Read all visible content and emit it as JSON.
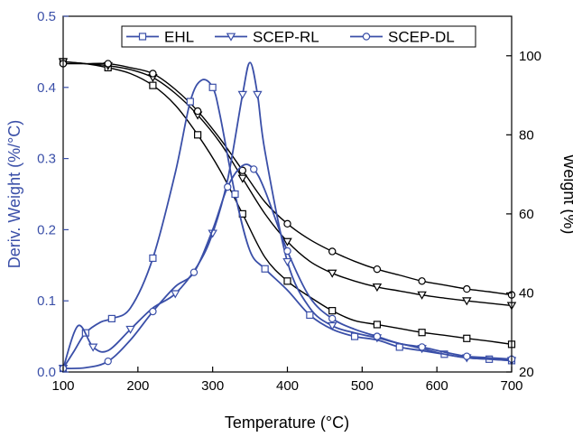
{
  "chart_data": {
    "type": "line",
    "xlabel": "Temperature (°C)",
    "ylabel_left": "Deriv. Weight (%/°C)",
    "ylabel_right": "Weight (%)",
    "xlim": [
      100,
      700
    ],
    "ylim_left": [
      0,
      0.5
    ],
    "ylim_right": [
      20,
      110
    ],
    "x_ticks": [
      100,
      200,
      300,
      400,
      500,
      600,
      700
    ],
    "x_tick_labels": [
      "100",
      "200",
      "300",
      "400",
      "500",
      "600",
      "700"
    ],
    "left_ticks": [
      0,
      0.1,
      0.2,
      0.3,
      0.4,
      0.5
    ],
    "left_tick_labels": [
      "0.0",
      "0.1",
      "0.2",
      "0.3",
      "0.4",
      "0.5"
    ],
    "right_ticks": [
      20,
      40,
      60,
      80,
      100
    ],
    "right_tick_labels": [
      "20",
      "40",
      "60",
      "80",
      "100"
    ],
    "grid": false,
    "legend_position": "top-center",
    "legend": [
      {
        "name": "EHL",
        "marker": "square"
      },
      {
        "name": "SCEP-RL",
        "marker": "triangle-down"
      },
      {
        "name": "SCEP-DL",
        "marker": "circle"
      }
    ],
    "colors": {
      "derivative": "#3a4fa8",
      "weight": "#000000",
      "left_axis": "#3a4fa8",
      "right_axis": "#000000"
    },
    "series": [
      {
        "name": "EHL",
        "axis": "right",
        "marker": "square",
        "color": "#000000",
        "x": [
          100,
          130,
          160,
          190,
          220,
          250,
          280,
          310,
          340,
          370,
          400,
          430,
          460,
          490,
          520,
          550,
          580,
          610,
          640,
          670,
          700
        ],
        "y": [
          98.5,
          98,
          97,
          95.5,
          92.5,
          87.5,
          80,
          71,
          60,
          49,
          43,
          39,
          35.5,
          33,
          32,
          31,
          30,
          29.3,
          28.5,
          27.8,
          27
        ]
      },
      {
        "name": "SCEP-RL",
        "axis": "right",
        "marker": "triangle-down",
        "color": "#000000",
        "x": [
          100,
          130,
          160,
          190,
          220,
          250,
          280,
          310,
          340,
          370,
          400,
          430,
          460,
          490,
          520,
          550,
          580,
          610,
          640,
          670,
          700
        ],
        "y": [
          98.5,
          98,
          97.5,
          96.5,
          94.5,
          90.5,
          85,
          78,
          69,
          60,
          53,
          48,
          45,
          43,
          41.5,
          40.5,
          39.5,
          38.7,
          38,
          37.4,
          36.8
        ]
      },
      {
        "name": "SCEP-DL",
        "axis": "right",
        "marker": "circle",
        "color": "#000000",
        "x": [
          100,
          130,
          160,
          190,
          220,
          250,
          280,
          310,
          340,
          370,
          400,
          430,
          460,
          490,
          520,
          550,
          580,
          610,
          640,
          670,
          700
        ],
        "y": [
          98,
          98,
          98,
          97,
          95.5,
          91.5,
          86,
          79,
          71,
          63,
          57.5,
          53.5,
          50.5,
          48,
          46,
          44.5,
          43,
          42,
          41,
          40.3,
          39.5
        ]
      },
      {
        "name": "EHL",
        "axis": "left",
        "marker": "square",
        "color": "#3a4fa8",
        "x": [
          100,
          115,
          130,
          150,
          165,
          190,
          220,
          250,
          270,
          285,
          300,
          310,
          330,
          350,
          370,
          400,
          430,
          460,
          490,
          520,
          550,
          580,
          610,
          640,
          670,
          700
        ],
        "y": [
          0.005,
          0.03,
          0.055,
          0.07,
          0.075,
          0.09,
          0.16,
          0.28,
          0.38,
          0.41,
          0.4,
          0.36,
          0.25,
          0.17,
          0.145,
          0.115,
          0.08,
          0.06,
          0.05,
          0.045,
          0.035,
          0.03,
          0.025,
          0.02,
          0.018,
          0.016
        ]
      },
      {
        "name": "SCEP-RL",
        "axis": "left",
        "marker": "triangle-down",
        "color": "#3a4fa8",
        "x": [
          100,
          120,
          140,
          160,
          190,
          220,
          250,
          280,
          300,
          320,
          340,
          350,
          360,
          370,
          400,
          430,
          460,
          490,
          520,
          550,
          580,
          610,
          640,
          670,
          700
        ],
        "y": [
          0.005,
          0.065,
          0.035,
          0.03,
          0.06,
          0.09,
          0.11,
          0.15,
          0.195,
          0.27,
          0.39,
          0.435,
          0.39,
          0.31,
          0.155,
          0.09,
          0.065,
          0.055,
          0.048,
          0.04,
          0.033,
          0.025,
          0.02,
          0.018,
          0.016
        ]
      },
      {
        "name": "SCEP-DL",
        "axis": "left",
        "marker": "circle",
        "color": "#3a4fa8",
        "x": [
          100,
          130,
          160,
          190,
          220,
          250,
          275,
          300,
          320,
          340,
          355,
          370,
          400,
          430,
          460,
          490,
          520,
          550,
          580,
          610,
          640,
          670,
          700
        ],
        "y": [
          0.005,
          0.006,
          0.015,
          0.045,
          0.085,
          0.12,
          0.14,
          0.2,
          0.26,
          0.29,
          0.285,
          0.255,
          0.17,
          0.105,
          0.075,
          0.06,
          0.05,
          0.04,
          0.035,
          0.028,
          0.022,
          0.02,
          0.018
        ]
      }
    ]
  }
}
